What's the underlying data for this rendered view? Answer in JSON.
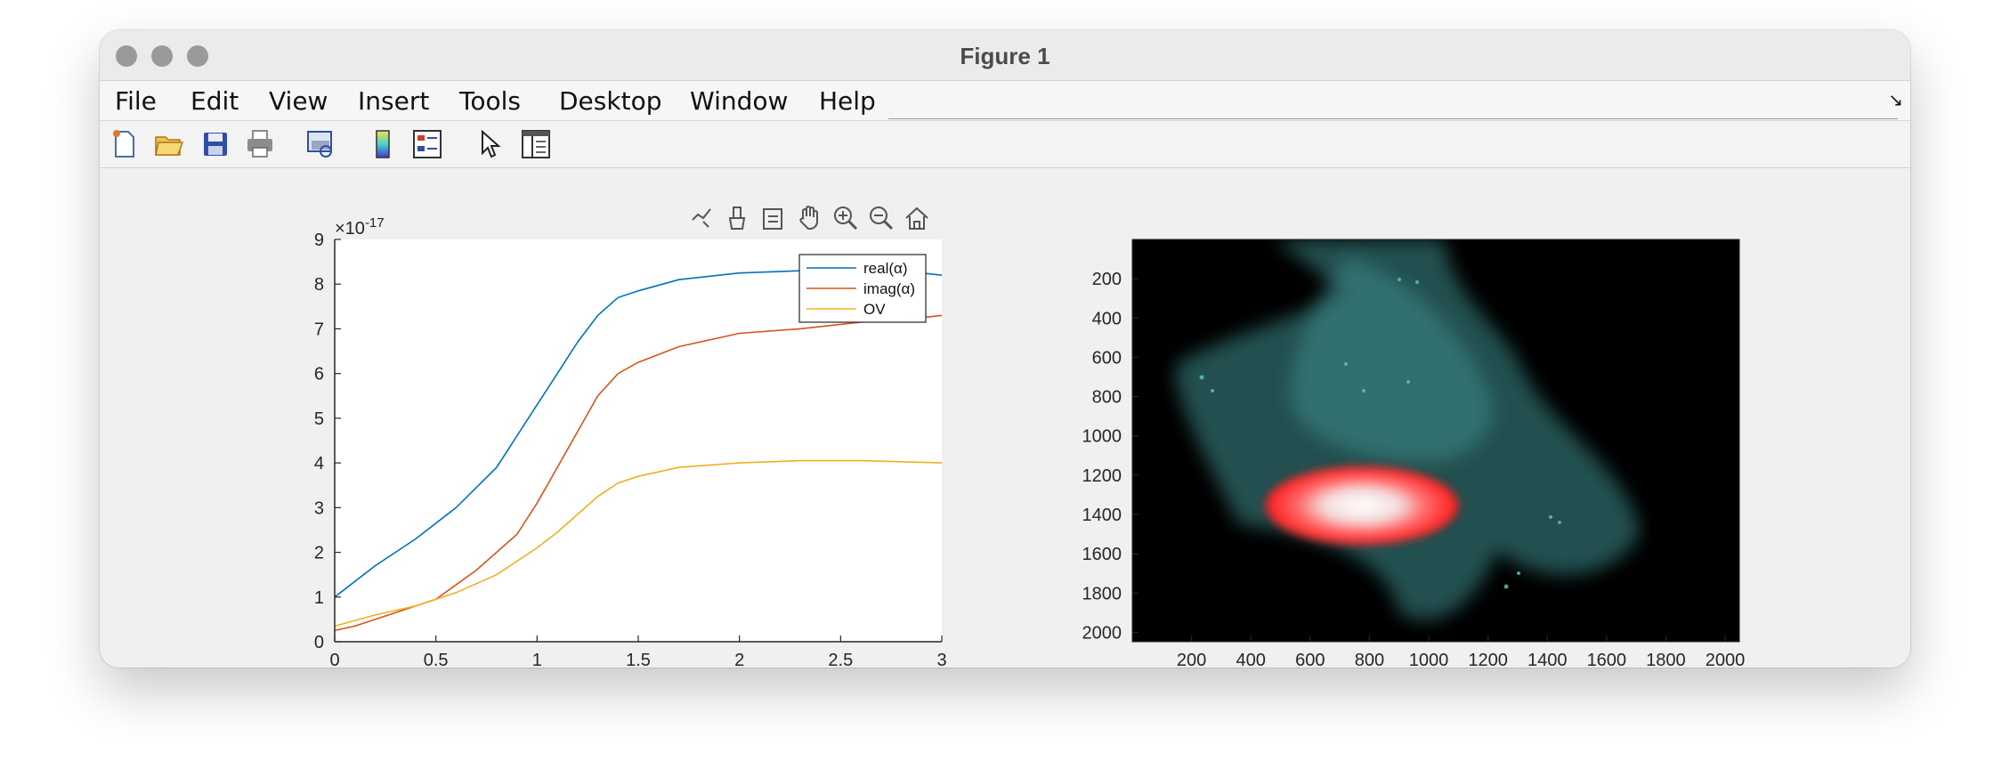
{
  "window": {
    "title": "Figure 1"
  },
  "menu": [
    "File",
    "Edit",
    "View",
    "Insert",
    "Tools",
    "Desktop",
    "Window",
    "Help"
  ],
  "toolbar_icons": [
    "new-figure-icon",
    "open-file-icon",
    "save-icon",
    "print-icon",
    "print-preview-icon",
    "colorbar-icon",
    "legend-icon",
    "pointer-icon",
    "property-inspector-icon"
  ],
  "axes_toolbar_icons": [
    "data-tip-icon",
    "brush-icon",
    "link-icon",
    "pan-icon",
    "zoom-in-icon",
    "zoom-out-icon",
    "home-icon"
  ],
  "chart_data": [
    {
      "type": "line",
      "xlim": [
        0,
        3
      ],
      "ylim": [
        0,
        9
      ],
      "x_ticks": [
        "0",
        "0.5",
        "1",
        "1.5",
        "2",
        "2.5",
        "3"
      ],
      "y_ticks": [
        "0",
        "1",
        "2",
        "3",
        "4",
        "5",
        "6",
        "7",
        "8",
        "9"
      ],
      "y_exponent": "-17",
      "legend_position": "top-right",
      "series": [
        {
          "name": "real(α)",
          "color": "#0072BD",
          "x": [
            0,
            0.2,
            0.4,
            0.6,
            0.8,
            1.0,
            1.1,
            1.2,
            1.3,
            1.4,
            1.5,
            1.7,
            2.0,
            2.3,
            2.6,
            2.8,
            3.0
          ],
          "y": [
            1.0,
            1.7,
            2.3,
            3.0,
            3.9,
            5.3,
            6.0,
            6.7,
            7.3,
            7.7,
            7.85,
            8.1,
            8.25,
            8.3,
            8.3,
            8.3,
            8.2
          ]
        },
        {
          "name": "imag(α)",
          "color": "#D95319",
          "x": [
            0,
            0.1,
            0.3,
            0.5,
            0.7,
            0.9,
            1.0,
            1.1,
            1.2,
            1.3,
            1.4,
            1.5,
            1.7,
            2.0,
            2.3,
            2.6,
            2.8,
            3.0
          ],
          "y": [
            0.25,
            0.35,
            0.65,
            0.95,
            1.6,
            2.4,
            3.1,
            3.9,
            4.7,
            5.5,
            6.0,
            6.25,
            6.6,
            6.9,
            7.0,
            7.15,
            7.2,
            7.3
          ]
        },
        {
          "name": "OV",
          "color": "#EDB120",
          "x": [
            0,
            0.2,
            0.4,
            0.6,
            0.8,
            1.0,
            1.1,
            1.2,
            1.3,
            1.4,
            1.5,
            1.7,
            2.0,
            2.3,
            2.6,
            3.0
          ],
          "y": [
            0.35,
            0.6,
            0.8,
            1.1,
            1.5,
            2.1,
            2.45,
            2.85,
            3.25,
            3.55,
            3.7,
            3.9,
            4.0,
            4.05,
            4.05,
            4.0
          ]
        }
      ]
    },
    {
      "type": "image",
      "x_ticks": [
        "200",
        "400",
        "600",
        "800",
        "1000",
        "1200",
        "1400",
        "1600",
        "1800",
        "2000"
      ],
      "y_ticks": [
        "200",
        "400",
        "600",
        "800",
        "1000",
        "1200",
        "1400",
        "1600",
        "1800",
        "2000"
      ],
      "xlim": [
        0,
        2048
      ],
      "ylim": [
        0,
        2048
      ]
    }
  ]
}
